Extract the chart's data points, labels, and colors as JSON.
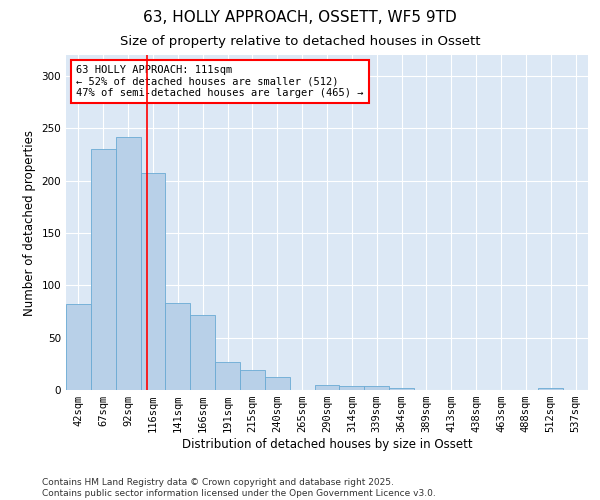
{
  "title1": "63, HOLLY APPROACH, OSSETT, WF5 9TD",
  "title2": "Size of property relative to detached houses in Ossett",
  "xlabel": "Distribution of detached houses by size in Ossett",
  "ylabel": "Number of detached properties",
  "categories": [
    "42sqm",
    "67sqm",
    "92sqm",
    "116sqm",
    "141sqm",
    "166sqm",
    "191sqm",
    "215sqm",
    "240sqm",
    "265sqm",
    "290sqm",
    "314sqm",
    "339sqm",
    "364sqm",
    "389sqm",
    "413sqm",
    "438sqm",
    "463sqm",
    "488sqm",
    "512sqm",
    "537sqm"
  ],
  "values": [
    82,
    230,
    242,
    207,
    83,
    72,
    27,
    19,
    12,
    0,
    5,
    4,
    4,
    2,
    0,
    0,
    0,
    0,
    0,
    2,
    0
  ],
  "bar_color": "#b8d0e8",
  "bar_edge_color": "#6aaad4",
  "vline_x": 2.76,
  "vline_color": "red",
  "annotation_text": "63 HOLLY APPROACH: 111sqm\n← 52% of detached houses are smaller (512)\n47% of semi-detached houses are larger (465) →",
  "annotation_box_color": "white",
  "annotation_box_edgecolor": "red",
  "ylim": [
    0,
    320
  ],
  "yticks": [
    0,
    50,
    100,
    150,
    200,
    250,
    300
  ],
  "background_color": "#dce8f5",
  "footer": "Contains HM Land Registry data © Crown copyright and database right 2025.\nContains public sector information licensed under the Open Government Licence v3.0.",
  "title_fontsize": 11,
  "subtitle_fontsize": 9.5,
  "axis_label_fontsize": 8.5,
  "tick_fontsize": 7.5,
  "footer_fontsize": 6.5,
  "annot_fontsize": 7.5
}
